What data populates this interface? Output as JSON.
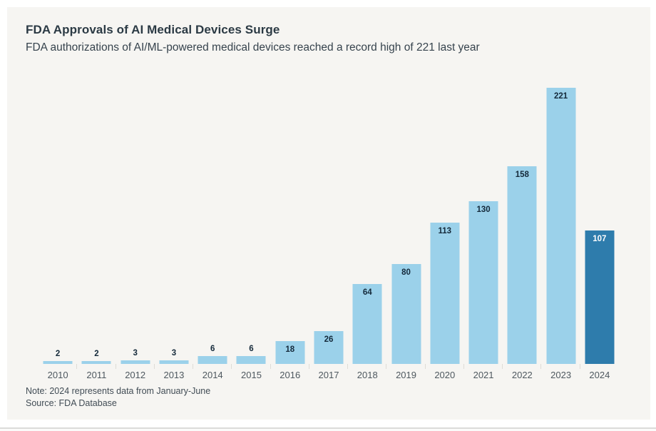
{
  "header": {
    "title": "FDA Approvals of AI Medical Devices Surge",
    "subtitle": "FDA authorizations of AI/ML-powered medical devices reached a record high of 221 last year"
  },
  "chart_data": {
    "type": "bar",
    "categories": [
      "2010",
      "2011",
      "2012",
      "2013",
      "2014",
      "2015",
      "2016",
      "2017",
      "2018",
      "2019",
      "2020",
      "2021",
      "2022",
      "2023",
      "2024"
    ],
    "values": [
      2,
      2,
      3,
      3,
      6,
      6,
      18,
      26,
      64,
      80,
      113,
      130,
      158,
      221,
      107
    ],
    "title": "FDA Approvals of AI Medical Devices Surge",
    "subtitle": "FDA authorizations of AI/ML-powered medical devices reached a record high of 221 last year",
    "xlabel": "",
    "ylabel": "",
    "ylim": [
      0,
      230
    ],
    "grid": false,
    "legend": "none",
    "bar_color": "#9bd1ea",
    "highlight_category": "2024",
    "highlight_index": 14,
    "highlight_color": "#2e7cac",
    "value_label_color": "#14293a",
    "highlight_value_label_color": "#ffffff",
    "annotations": []
  },
  "footer": {
    "note": "Note: 2024 represents data from January-June",
    "source": "Source: FDA Database"
  }
}
